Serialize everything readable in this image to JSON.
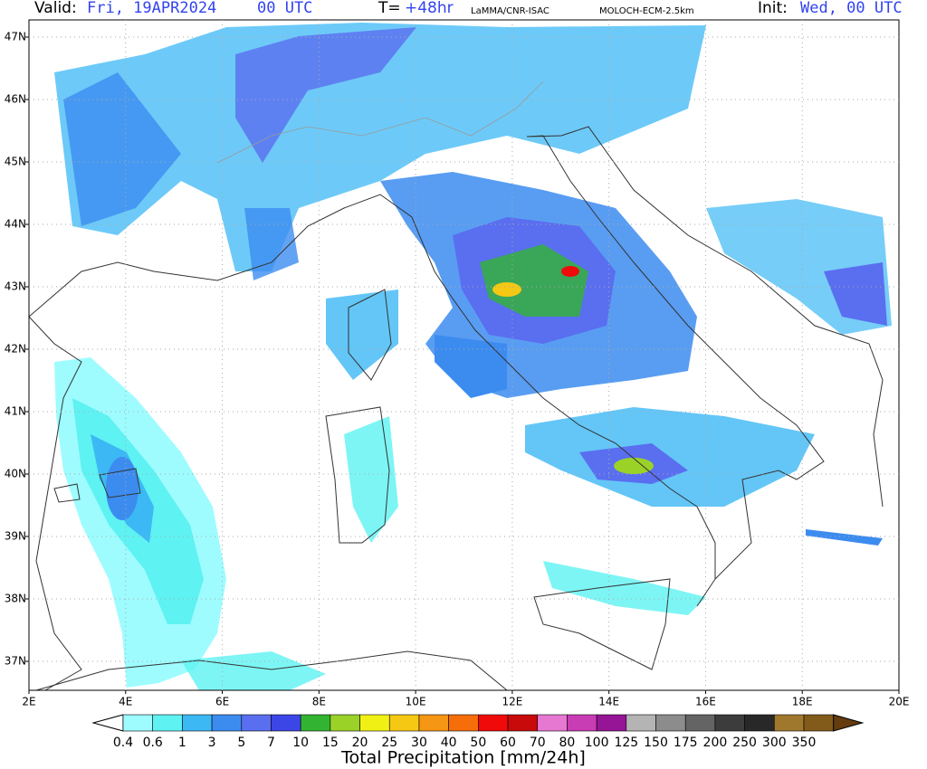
{
  "header": {
    "valid_label": "Valid:",
    "valid_date": "Fri, 19APR2024",
    "valid_time": "00 UTC",
    "lead_label": "T=",
    "lead_value": "+48hr",
    "source": "LaMMA/CNR-ISAC",
    "model": "MOLOCH-ECM-2.5km",
    "init_label": "Init:",
    "init_value": "Wed, 00 UTC"
  },
  "map": {
    "lon_labels": [
      "2E",
      "4E",
      "6E",
      "8E",
      "10E",
      "12E",
      "14E",
      "16E",
      "18E",
      "20E"
    ],
    "lat_labels": [
      "37N",
      "38N",
      "39N",
      "40N",
      "41N",
      "42N",
      "43N",
      "44N",
      "45N",
      "46N",
      "47N"
    ]
  },
  "colorbar": {
    "title": "Total Precipitation [mm/24h]",
    "labels": [
      "0.4",
      "0.6",
      "1",
      "3",
      "5",
      "7",
      "10",
      "15",
      "20",
      "25",
      "30",
      "40",
      "50",
      "60",
      "70",
      "80",
      "100",
      "125",
      "150",
      "175",
      "200",
      "250",
      "300",
      "350"
    ],
    "colors": [
      "#ffffff",
      "#9efcff",
      "#5ef2f2",
      "#3cb8f5",
      "#3c8cf0",
      "#5a6ef0",
      "#3c46e6",
      "#32b432",
      "#9bd228",
      "#f0f014",
      "#f5c814",
      "#f59614",
      "#f56e0a",
      "#f00a0a",
      "#c80a0a",
      "#e678d2",
      "#c83cb4",
      "#961496",
      "#b4b4b4",
      "#8c8c8c",
      "#646464",
      "#3c3c3c",
      "#282828",
      "#a0782d",
      "#825a19",
      "#643c0f"
    ]
  }
}
